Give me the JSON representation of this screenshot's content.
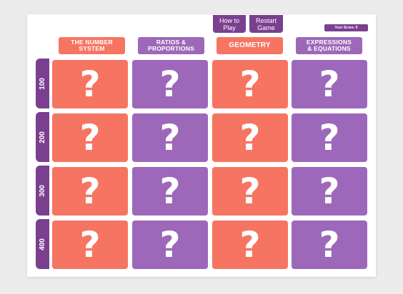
{
  "header": {
    "how_to_play": "How to Play",
    "restart_game": "Restart Game",
    "score_label": "Your Score: 0"
  },
  "categories": [
    "THE NUMBER SYSTEM",
    "RATIOS & PROPORTIONS",
    "GEOMETRY",
    "EXPRESSIONS & EQUATIONS"
  ],
  "rows": [
    "100",
    "200",
    "300",
    "400"
  ],
  "tile_symbol": "?",
  "colors": {
    "coral": "#f57562",
    "purple": "#9d68b9",
    "dark_purple": "#7a3f8f",
    "background": "#ececec"
  }
}
